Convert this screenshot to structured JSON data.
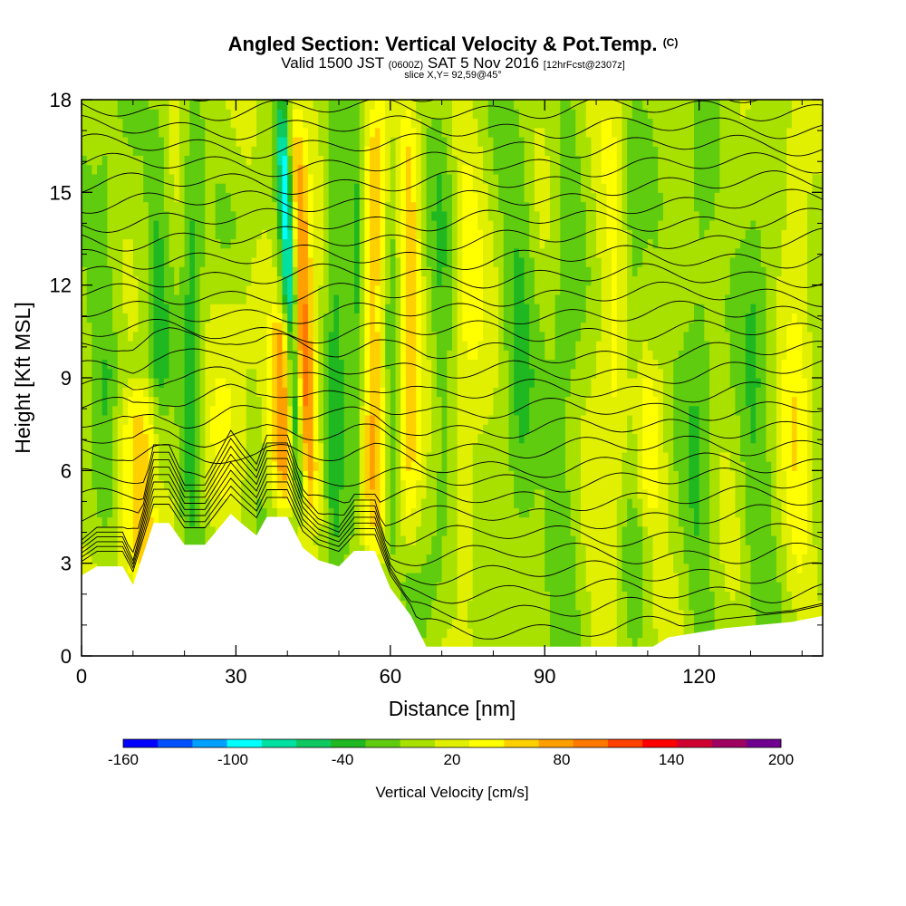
{
  "header": {
    "title_main": "Angled Section: Vertical Velocity & Pot.Temp.",
    "title_unit": "(C)",
    "valid_prefix": "Valid 1500 JST",
    "valid_utc": "(0600Z)",
    "valid_date": "SAT 5 Nov 2016",
    "valid_fcst": "[12hrFcst@2307z]",
    "slice": "slice X,Y= 92,59@45°"
  },
  "chart_data": {
    "type": "heatmap",
    "xlabel": "Distance [nm]",
    "ylabel": "Height [Kft MSL]",
    "xlim": [
      0,
      144
    ],
    "ylim": [
      0,
      18
    ],
    "x_ticks": [
      0,
      30,
      60,
      90,
      120
    ],
    "y_ticks": [
      0,
      3,
      6,
      9,
      12,
      15,
      18
    ],
    "colorbar": {
      "label": "Vertical Velocity [cm/s]",
      "levels": [
        -160,
        -140,
        -120,
        -100,
        -80,
        -60,
        -40,
        -20,
        0,
        20,
        40,
        60,
        80,
        100,
        120,
        140,
        160,
        180,
        200
      ],
      "tick_labels": [
        -160,
        -100,
        -40,
        20,
        80,
        140,
        200
      ],
      "colors": [
        "#0000ff",
        "#0050ff",
        "#00a0ff",
        "#00ffff",
        "#00e0a0",
        "#10c860",
        "#20b820",
        "#60cc10",
        "#a8e000",
        "#e0f000",
        "#ffff00",
        "#ffd000",
        "#ffa000",
        "#ff7800",
        "#ff4000",
        "#ff0000",
        "#d00030",
        "#a00060",
        "#700090"
      ]
    },
    "terrain_profile": [
      [
        0,
        2.6
      ],
      [
        3,
        2.9
      ],
      [
        8,
        2.9
      ],
      [
        10,
        2.3
      ],
      [
        12,
        3.3
      ],
      [
        14,
        4.3
      ],
      [
        17,
        4.3
      ],
      [
        20,
        3.6
      ],
      [
        24,
        3.6
      ],
      [
        26,
        4.0
      ],
      [
        29,
        4.6
      ],
      [
        31,
        4.3
      ],
      [
        34,
        3.9
      ],
      [
        36,
        4.5
      ],
      [
        40,
        4.5
      ],
      [
        43,
        3.5
      ],
      [
        46,
        3.1
      ],
      [
        50,
        2.9
      ],
      [
        53,
        3.4
      ],
      [
        57,
        3.4
      ],
      [
        60,
        2.2
      ],
      [
        64,
        1.3
      ],
      [
        67,
        0.3
      ],
      [
        80,
        0.3
      ],
      [
        90,
        0.3
      ],
      [
        100,
        0.3
      ],
      [
        111,
        0.3
      ],
      [
        114,
        0.6
      ],
      [
        125,
        0.9
      ],
      [
        138,
        1.1
      ],
      [
        144,
        1.3
      ]
    ],
    "updrafts": [
      {
        "x": 43.0,
        "y_bottom": 4.4,
        "y_top": 18,
        "width": 2.5,
        "peak": 110
      },
      {
        "x": 39.5,
        "y_bottom": 5.0,
        "y_top": 11,
        "width": 3.0,
        "peak": 80
      },
      {
        "x": 11.0,
        "y_bottom": 2.5,
        "y_top": 8.5,
        "width": 5.0,
        "peak": 55
      },
      {
        "x": 57.0,
        "y_bottom": 3.5,
        "y_top": 18,
        "width": 2.5,
        "peak": 70
      },
      {
        "x": 63.5,
        "y_bottom": 3.0,
        "y_top": 18,
        "width": 2.5,
        "peak": 60
      },
      {
        "x": 74.0,
        "y_bottom": 2.0,
        "y_top": 18,
        "width": 4.0,
        "peak": 35
      },
      {
        "x": 103.0,
        "y_bottom": 0.5,
        "y_top": 18,
        "width": 4.0,
        "peak": 30
      },
      {
        "x": 110.0,
        "y_bottom": 4.5,
        "y_top": 9.0,
        "width": 4.0,
        "peak": 30
      },
      {
        "x": 139.0,
        "y_bottom": 1.0,
        "y_top": 18,
        "width": 3.0,
        "peak": 35
      },
      {
        "x": 29.0,
        "y_bottom": 4.0,
        "y_top": 13.0,
        "width": 4.0,
        "peak": 25
      }
    ],
    "downdrafts": [
      {
        "x": 41.0,
        "y_bottom": 4.5,
        "y_top": 18,
        "width": 1.5,
        "peak": -150
      },
      {
        "x": 21.5,
        "y_bottom": 3.5,
        "y_top": 18,
        "width": 2.0,
        "peak": -45
      },
      {
        "x": 49.5,
        "y_bottom": 3.0,
        "y_top": 18,
        "width": 2.0,
        "peak": -45
      },
      {
        "x": 53.5,
        "y_bottom": 3.0,
        "y_top": 18,
        "width": 1.5,
        "peak": -40
      },
      {
        "x": 60.5,
        "y_bottom": 3.0,
        "y_top": 18,
        "width": 1.8,
        "peak": -40
      },
      {
        "x": 70.5,
        "y_bottom": 1.0,
        "y_top": 18,
        "width": 3.0,
        "peak": -35
      },
      {
        "x": 85.0,
        "y_bottom": 0.3,
        "y_top": 18,
        "width": 3.0,
        "peak": -28
      },
      {
        "x": 94.0,
        "y_bottom": 0.3,
        "y_top": 18,
        "width": 3.0,
        "peak": -25
      },
      {
        "x": 107.0,
        "y_bottom": 0.3,
        "y_top": 18,
        "width": 2.0,
        "peak": -30
      },
      {
        "x": 120.0,
        "y_bottom": 0.5,
        "y_top": 18,
        "width": 3.0,
        "peak": -28
      },
      {
        "x": 131.0,
        "y_bottom": 0.5,
        "y_top": 18,
        "width": 3.0,
        "peak": -25
      },
      {
        "x": 15.0,
        "y_bottom": 3.0,
        "y_top": 18,
        "width": 2.0,
        "peak": -30
      },
      {
        "x": 5.0,
        "y_bottom": 2.6,
        "y_top": 18,
        "width": 3.0,
        "peak": -25
      }
    ],
    "theta_contours": {
      "levels": [
        3,
        5,
        7,
        9,
        11,
        13,
        15,
        17,
        19,
        21,
        23,
        25,
        27,
        29,
        31,
        33,
        35,
        37,
        39,
        41,
        43,
        45,
        47,
        49,
        51,
        53,
        55,
        57,
        59,
        61
      ],
      "base_height": [
        0.9,
        1.5,
        2.1,
        2.7,
        3.3,
        3.9,
        4.5,
        5.1,
        5.7,
        6.3,
        6.9,
        7.5,
        8.1,
        8.7,
        9.3,
        9.9,
        10.5,
        11.1,
        11.7,
        12.3,
        12.9,
        13.5,
        14.1,
        14.7,
        15.3,
        15.9,
        16.5,
        17.1,
        17.7,
        18.3
      ]
    }
  }
}
